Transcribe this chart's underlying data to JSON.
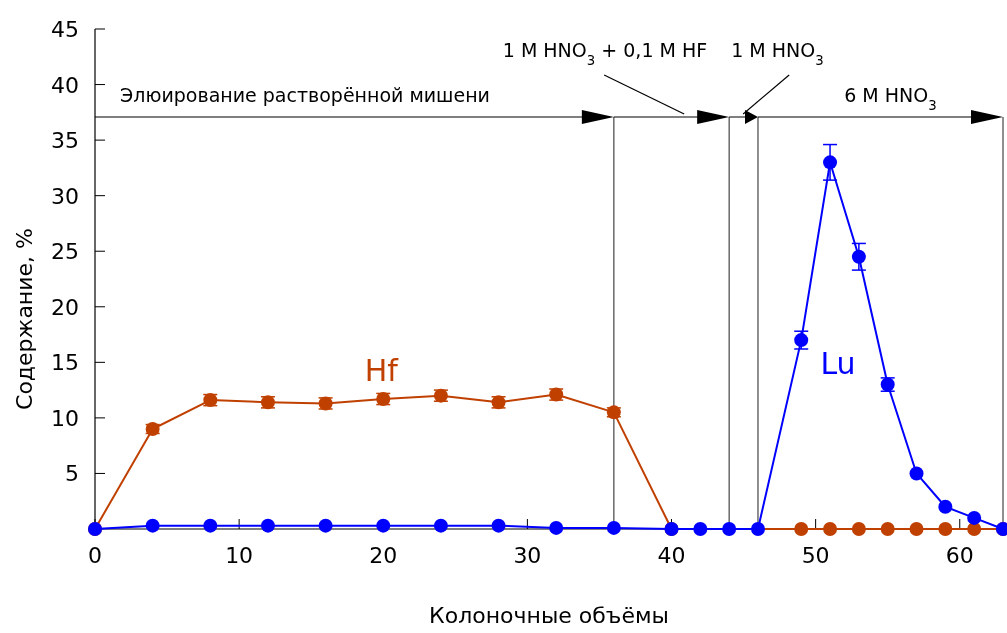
{
  "chart_data": {
    "type": "line",
    "xlabel": "Колоночные объёмы",
    "ylabel": "Содержание, %",
    "xlim": [
      0,
      63
    ],
    "ylim": [
      0,
      45
    ],
    "xticks": [
      0,
      10,
      20,
      30,
      40,
      50,
      60
    ],
    "yticks": [
      5,
      10,
      15,
      20,
      25,
      30,
      35,
      40,
      45
    ],
    "marker": "circle",
    "grid": false,
    "series": [
      {
        "name": "Hf",
        "color": "#c04000",
        "x": [
          0,
          4,
          8,
          12,
          16,
          20,
          24,
          28,
          32,
          36,
          40,
          49,
          51,
          53,
          55,
          57,
          59,
          61,
          63
        ],
        "values": [
          0,
          9,
          11.6,
          11.4,
          11.3,
          11.7,
          12,
          11.4,
          12.1,
          10.5,
          0,
          0,
          0,
          0,
          0,
          0,
          0,
          0,
          0
        ],
        "errors": [
          null,
          0.4,
          0.5,
          0.5,
          0.5,
          0.5,
          0.5,
          0.5,
          0.5,
          0.4,
          null,
          null,
          null,
          null,
          null,
          null,
          null,
          null,
          null
        ]
      },
      {
        "name": "Lu",
        "color": "#0000ff",
        "x": [
          0,
          4,
          8,
          12,
          16,
          20,
          24,
          28,
          32,
          36,
          40,
          42,
          44,
          46,
          49,
          51,
          53,
          55,
          57,
          59,
          61,
          63
        ],
        "values": [
          0,
          0.3,
          0.3,
          0.3,
          0.3,
          0.3,
          0.3,
          0.3,
          0.1,
          0.1,
          0,
          0,
          0,
          0,
          17,
          33,
          24.5,
          13,
          5,
          2,
          1,
          0
        ],
        "errors": [
          null,
          null,
          null,
          null,
          null,
          null,
          null,
          null,
          null,
          null,
          null,
          null,
          null,
          null,
          0.8,
          1.6,
          1.2,
          0.6,
          null,
          null,
          null,
          null
        ]
      }
    ],
    "ref_lines": [
      {
        "axis": "x",
        "value": 36
      },
      {
        "axis": "x",
        "value": 44
      },
      {
        "axis": "x",
        "value": 46
      },
      {
        "axis": "x",
        "value": 63
      }
    ],
    "annotations": [
      "Элюирование растворённой мишени",
      "1 M HNO$_{3}$ + 0,1 M HF",
      "1 M HNO$_{3}$",
      "6 M HNO$_{3}$"
    ]
  }
}
